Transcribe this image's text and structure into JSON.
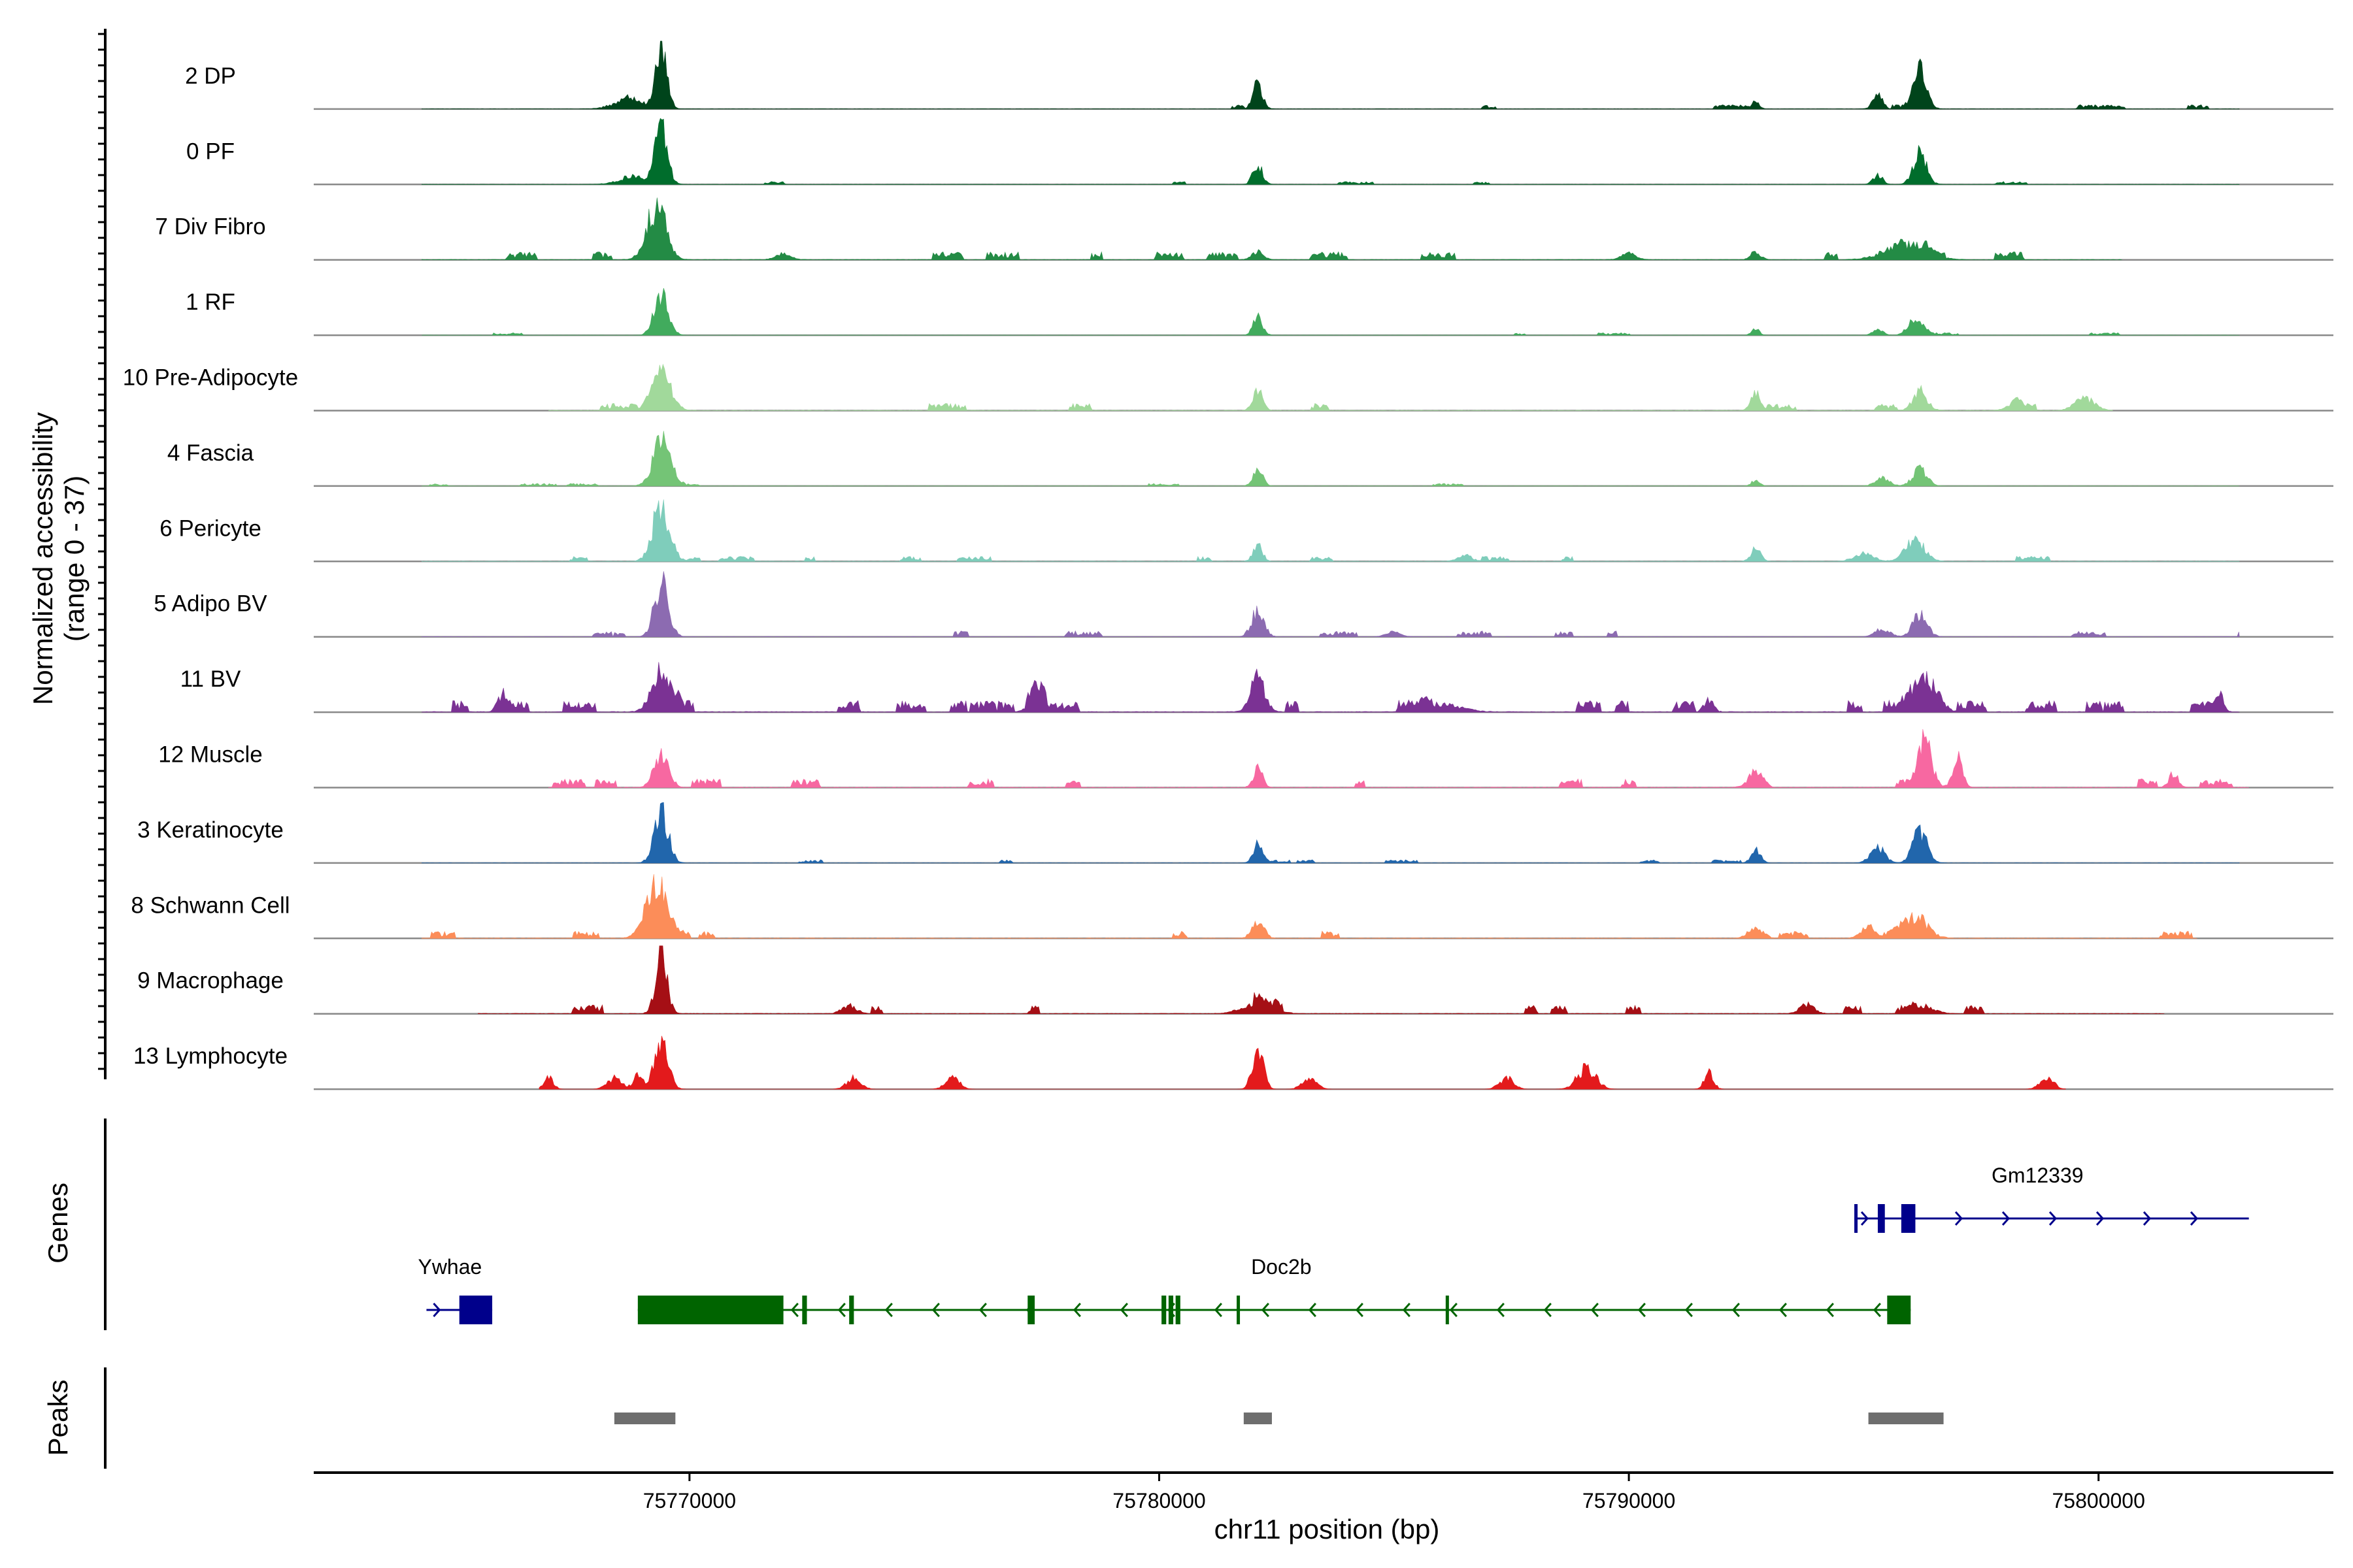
{
  "chart_data": {
    "type": "area",
    "ylabel": [
      "Normalized accessibility",
      "(range 0 - 37)"
    ],
    "xlabel": "chr11 position (bp)",
    "xlim": [
      75762000,
      75805000
    ],
    "x_ticks": [
      75770000,
      75780000,
      75790000,
      75800000
    ],
    "x_tick_labels": [
      "75770000",
      "75780000",
      "75790000",
      "75800000"
    ],
    "y_range": [
      0,
      37
    ],
    "series": [
      {
        "name": "2 DP",
        "color": "#00441b",
        "noise": 0.6,
        "start": 75764300,
        "end": 75803000,
        "peaks": [
          [
            75769400,
            37,
            120
          ],
          [
            75782100,
            17,
            100
          ],
          [
            75796200,
            24,
            140
          ],
          [
            75795300,
            9,
            100
          ],
          [
            75768700,
            6,
            300
          ],
          [
            75792700,
            5,
            80
          ]
        ]
      },
      {
        "name": "0 PF",
        "color": "#006d2c",
        "noise": 0.4,
        "start": 75764300,
        "end": 75803000,
        "peaks": [
          [
            75769400,
            36,
            130
          ],
          [
            75782100,
            13,
            100
          ],
          [
            75796200,
            19,
            140
          ],
          [
            75795300,
            6,
            100
          ],
          [
            75768800,
            5,
            300
          ]
        ]
      },
      {
        "name": "7 Div Fibro",
        "color": "#238b45",
        "noise": 1.1,
        "start": 75764300,
        "end": 75800500,
        "peaks": [
          [
            75769300,
            35,
            200
          ],
          [
            75782100,
            5,
            120
          ],
          [
            75795900,
            10,
            420
          ],
          [
            75772000,
            4,
            150
          ],
          [
            75790000,
            4,
            150
          ],
          [
            75792700,
            5,
            100
          ]
        ]
      },
      {
        "name": "1 RF",
        "color": "#41ab5d",
        "noise": 0.35,
        "start": 75764300,
        "end": 75803000,
        "peaks": [
          [
            75769400,
            25,
            150
          ],
          [
            75782100,
            11,
            100
          ],
          [
            75796100,
            11,
            150
          ],
          [
            75795300,
            4,
            100
          ],
          [
            75792700,
            4,
            80
          ]
        ]
      },
      {
        "name": "10 Pre-Adipocyte",
        "color": "#a1d99b",
        "noise": 1.0,
        "start": 75767000,
        "end": 75800300,
        "peaks": [
          [
            75769400,
            25,
            200
          ],
          [
            75782100,
            14,
            100
          ],
          [
            75796200,
            12,
            150
          ],
          [
            75792700,
            11,
            100
          ],
          [
            75799700,
            8,
            200
          ],
          [
            75798200,
            5,
            150
          ]
        ]
      },
      {
        "name": "4 Fascia",
        "color": "#74c476",
        "noise": 0.35,
        "start": 75764300,
        "end": 75803000,
        "peaks": [
          [
            75769400,
            29,
            180
          ],
          [
            75782100,
            11,
            100
          ],
          [
            75796200,
            11,
            150
          ],
          [
            75795400,
            5,
            150
          ],
          [
            75792700,
            4,
            80
          ]
        ]
      },
      {
        "name": "6 Pericyte",
        "color": "#7fcdbb",
        "noise": 0.7,
        "start": 75764300,
        "end": 75803000,
        "peaks": [
          [
            75769400,
            36,
            180
          ],
          [
            75782100,
            10,
            100
          ],
          [
            75796100,
            14,
            200
          ],
          [
            75795000,
            5,
            200
          ],
          [
            75792700,
            8,
            100
          ],
          [
            75786500,
            4,
            150
          ]
        ]
      },
      {
        "name": "5 Adipo BV",
        "color": "#8c6bb1",
        "noise": 0.8,
        "start": 75764300,
        "end": 75803000,
        "peaks": [
          [
            75769400,
            33,
            150
          ],
          [
            75782100,
            17,
            130
          ],
          [
            75796200,
            14,
            150
          ],
          [
            75795400,
            5,
            150
          ],
          [
            75785000,
            3,
            150
          ]
        ]
      },
      {
        "name": "11 BV",
        "color": "#7b3294",
        "noise": 1.6,
        "start": 75764300,
        "end": 75803000,
        "peaks": [
          [
            75769400,
            27,
            200
          ],
          [
            75782100,
            21,
            150
          ],
          [
            75796300,
            22,
            250
          ],
          [
            75777400,
            14,
            150
          ],
          [
            75766000,
            10,
            100
          ],
          [
            75802600,
            9,
            80
          ],
          [
            75786000,
            5,
            400
          ],
          [
            75791700,
            8,
            100
          ]
        ]
      },
      {
        "name": "12 Muscle",
        "color": "#f768a1",
        "noise": 1.2,
        "start": 75767000,
        "end": 75803200,
        "peaks": [
          [
            75769400,
            23,
            150
          ],
          [
            75796300,
            27,
            150
          ],
          [
            75797000,
            20,
            100
          ],
          [
            75782100,
            12,
            100
          ],
          [
            75792700,
            10,
            150
          ],
          [
            75801600,
            9,
            100
          ]
        ]
      },
      {
        "name": "3 Keratinocyte",
        "color": "#2166ac",
        "noise": 0.45,
        "start": 75764300,
        "end": 75803000,
        "peaks": [
          [
            75769400,
            31,
            150
          ],
          [
            75782100,
            11,
            100
          ],
          [
            75796200,
            20,
            150
          ],
          [
            75795300,
            10,
            150
          ],
          [
            75792700,
            8,
            100
          ]
        ]
      },
      {
        "name": "8 Schwann Cell",
        "color": "#fc8d59",
        "noise": 1.0,
        "start": 75764300,
        "end": 75802100,
        "peaks": [
          [
            75769300,
            35,
            220
          ],
          [
            75782100,
            12,
            120
          ],
          [
            75796100,
            14,
            250
          ],
          [
            75795100,
            7,
            150
          ],
          [
            75792700,
            7,
            150
          ]
        ]
      },
      {
        "name": "9 Macrophage",
        "color": "#a50f15",
        "noise": 1.2,
        "start": 75765500,
        "end": 75801400,
        "peaks": [
          [
            75769400,
            37,
            120
          ],
          [
            75782100,
            7,
            300
          ],
          [
            75796300,
            5,
            200
          ],
          [
            75773400,
            5,
            150
          ],
          [
            75793800,
            6,
            150
          ]
        ]
      },
      {
        "name": "13 Lymphocyte",
        "color": "#e31a1c",
        "noise": 0.0,
        "start": 75766800,
        "end": 75799300,
        "peaks": [
          [
            75769400,
            28,
            150
          ],
          [
            75782100,
            24,
            120
          ],
          [
            75789100,
            13,
            200
          ],
          [
            75791700,
            10,
            100
          ],
          [
            75787400,
            7,
            150
          ],
          [
            75767000,
            7,
            100
          ],
          [
            75768400,
            7,
            150
          ],
          [
            75773500,
            7,
            150
          ],
          [
            75775600,
            7,
            150
          ],
          [
            75783200,
            7,
            150
          ],
          [
            75798900,
            7,
            150
          ],
          [
            75768900,
            8,
            100
          ]
        ]
      }
    ],
    "genes": [
      {
        "name": "Ywhae",
        "strand": "+",
        "row": 2,
        "color": "#00008b",
        "start": 75764400,
        "end": 75765800,
        "exons": [
          [
            75765100,
            75765800
          ]
        ],
        "label_pos": 75764900
      },
      {
        "name": "Doc2b",
        "strand": "-",
        "row": 2,
        "color": "#006400",
        "start": 75768900,
        "end": 75796000,
        "exons": [
          [
            75768900,
            75772000
          ],
          [
            75772400,
            75772500
          ],
          [
            75773400,
            75773500
          ],
          [
            75777200,
            75777350
          ],
          [
            75780050,
            75780150
          ],
          [
            75780200,
            75780300
          ],
          [
            75780350,
            75780450
          ],
          [
            75781650,
            75781700
          ],
          [
            75786100,
            75786150
          ],
          [
            75795500,
            75796000
          ]
        ],
        "label_pos": 75782600
      },
      {
        "name": "Gm12339",
        "strand": "+",
        "row": 1,
        "color": "#00008b",
        "start": 75794800,
        "end": 75803200,
        "exons": [
          [
            75794800,
            75794850
          ],
          [
            75795300,
            75795450
          ],
          [
            75795800,
            75796100
          ]
        ],
        "label_pos": 75798700
      }
    ],
    "peaks_track": [
      [
        75768400,
        75769700
      ],
      [
        75781800,
        75782400
      ],
      [
        75795100,
        75796700
      ]
    ],
    "track_titles": {
      "genes": "Genes",
      "peaks": "Peaks"
    }
  }
}
